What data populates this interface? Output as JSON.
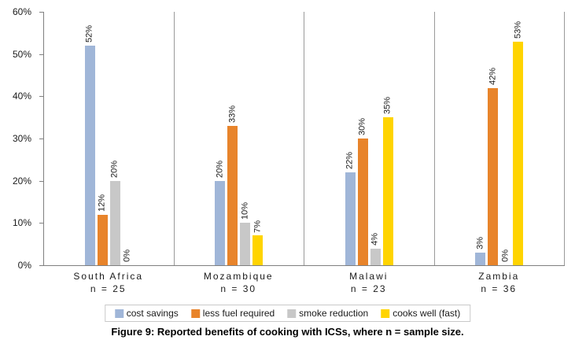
{
  "caption": "Figure 9: Reported benefits of cooking with ICSs, where n = sample size.",
  "chart_data": {
    "type": "bar",
    "title": "",
    "xlabel": "",
    "ylabel": "",
    "ylim": [
      0,
      60
    ],
    "ytick_step": 10,
    "ytick_labels": [
      "0%",
      "10%",
      "20%",
      "30%",
      "40%",
      "50%",
      "60%"
    ],
    "grid": "vertical category separators only",
    "legend_position": "bottom",
    "bar_label_rotation": "vertical",
    "categories": [
      "South Africa",
      "Mozambique",
      "Malawi",
      "Zambia"
    ],
    "category_sublabels": [
      "n = 25",
      "n = 30",
      "n = 23",
      "n = 36"
    ],
    "series": [
      {
        "name": "cost savings",
        "color": "#A0B6D8",
        "values": [
          52,
          20,
          22,
          3
        ]
      },
      {
        "name": "less fuel required",
        "color": "#E8842B",
        "values": [
          12,
          33,
          30,
          42
        ]
      },
      {
        "name": "smoke reduction",
        "color": "#C8C8C8",
        "values": [
          20,
          10,
          4,
          0
        ]
      },
      {
        "name": "cooks well (fast)",
        "color": "#FFD400",
        "values": [
          0,
          7,
          35,
          53
        ]
      }
    ]
  }
}
